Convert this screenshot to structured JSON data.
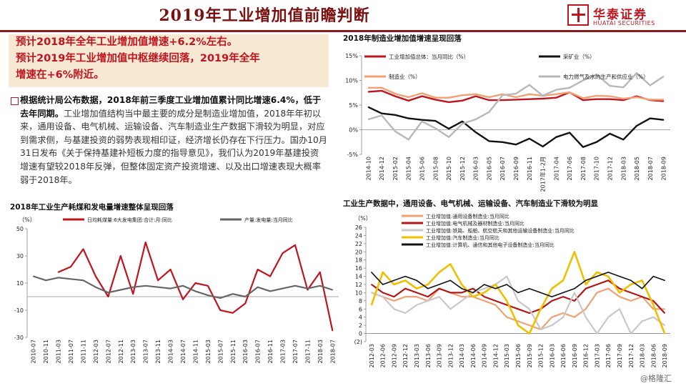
{
  "header": {
    "title": "2019年工业增加值前瞻判断",
    "logo_cn": "华泰证券",
    "logo_en": "HUATAI SECURITIES"
  },
  "summary": {
    "line1": "预计2018年全年工业增加值增速+6.2%左右。",
    "line2": "预计2019年工业增加值中枢继续回落，2019年全年",
    "line3": "增速在+6%附近。"
  },
  "body": {
    "bold": "根据统计局公布数据，2018年前三季度工业增加值累计同比增速6.4%，低于去年同期。",
    "rest": "工业增加值结构当中最主要的成分是制造业增加值，2018年年初以来，通用设备、电气机械、运输设备、汽车制造业生产数据下滑较为明显，对应到需求侧，与基建投资的弱势表现相印证，经济增长仍存在下行压力。国办10月31日发布《关于保持基建补短板力度的指导意见》，我们认为2019年基建投资增速有望较2018年反弹，但整体固定资产投资增速、以及出口增速表现大概率弱于2018年。"
  },
  "watermark": "@格隆汇",
  "colors": {
    "brand": "#8b1a1a",
    "accent": "#c0141e",
    "box": "#f6e8d3"
  },
  "chart_data": [
    {
      "id": "chart1",
      "type": "line",
      "title": "2018年制造业增加值增速呈现回落",
      "ylim": [
        -5,
        15
      ],
      "yticks": [
        "15%",
        "10%",
        "5%",
        "0%",
        "-5%"
      ],
      "ytick_values": [
        15,
        10,
        5,
        0,
        -5
      ],
      "x": [
        "2014-10",
        "2014-12",
        "2015-02",
        "2015-04",
        "2015-06",
        "2015-08",
        "2015-10",
        "2015-12",
        "2016-03",
        "2016-05",
        "2016-07",
        "2016-09",
        "2016-11",
        "2017年1-2月",
        "2017-04",
        "2017-06",
        "2017-08",
        "2017-10",
        "2017-12",
        "2018-03",
        "2018-05",
        "2018-07",
        "2018-09"
      ],
      "series": [
        {
          "name": "工业增加值总体：当月同比（%）",
          "color": "#c0141e",
          "width": 2.4,
          "values": [
            7.7,
            7.9,
            6.8,
            5.9,
            6.8,
            6.1,
            5.6,
            5.9,
            6.8,
            6.0,
            6.0,
            6.1,
            6.2,
            6.3,
            6.5,
            7.6,
            6.0,
            6.2,
            6.2,
            6.0,
            6.8,
            6.0,
            5.8
          ]
        },
        {
          "name": "采矿业（%）",
          "color": "#111111",
          "width": 2.4,
          "values": [
            4.6,
            3.3,
            3.0,
            2.3,
            2.0,
            1.8,
            0.2,
            1.7,
            -0.5,
            -2.3,
            -2.5,
            -3.0,
            -1.8,
            -3.4,
            -1.5,
            -0.6,
            -3.5,
            -2.5,
            -0.8,
            -2.0,
            0.8,
            2.3,
            2.0
          ]
        },
        {
          "name": "制造业（%）",
          "color": "#f2a073",
          "width": 2.4,
          "values": [
            8.5,
            8.5,
            7.3,
            6.6,
            7.4,
            6.5,
            6.5,
            7.0,
            7.2,
            6.6,
            7.2,
            6.6,
            7.2,
            6.9,
            7.2,
            7.6,
            6.4,
            6.9,
            6.8,
            6.3,
            6.6,
            6.1,
            6.1
          ]
        },
        {
          "name": "电力燃气及水的生产和供应业（%）",
          "color": "#b8b8b8",
          "width": 2.4,
          "values": [
            2.1,
            2.9,
            -0.3,
            -2.0,
            1.7,
            0.3,
            -1.5,
            1.2,
            2.1,
            3.6,
            7.0,
            7.3,
            9.1,
            6.9,
            8.1,
            8.5,
            10.0,
            11.2,
            8.9,
            8.6,
            11.5,
            9.0,
            10.8
          ]
        }
      ]
    },
    {
      "id": "chart2",
      "type": "line",
      "title": "2018年工业生产耗煤和发电量增速整体呈现回落",
      "ylabel": "（%）",
      "ylim": [
        -30,
        50
      ],
      "yticks": [
        "50",
        "30",
        "10",
        "-10",
        "-30"
      ],
      "ytick_values": [
        50,
        30,
        10,
        -10,
        -30
      ],
      "x": [
        "2010-07",
        "2010-11",
        "2011-03",
        "2011-07",
        "2011-11",
        "2012-03",
        "2012-07",
        "2012-11",
        "2013-03",
        "2013-07",
        "2013-11",
        "2014-03",
        "2014-07",
        "2014-11",
        "2015-03",
        "2015-07",
        "2015-11",
        "2016-03",
        "2016-07",
        "2016-11",
        "2017-03",
        "2017-07",
        "2017-11",
        "2018-03",
        "2018-07"
      ],
      "series": [
        {
          "name": "日均耗煤量:6大发电集团:合计:月:同比",
          "color": "#c0141e",
          "width": 2.2,
          "values": [
            null,
            null,
            18,
            22,
            35,
            15,
            0,
            30,
            2,
            40,
            12,
            20,
            -2,
            10,
            8,
            -10,
            -12,
            -5,
            20,
            15,
            32,
            38,
            5,
            18,
            -25
          ]
        },
        {
          "name": "产量:发电量:当月同比",
          "color": "#666666",
          "width": 2.2,
          "values": [
            15,
            12,
            14,
            13,
            12,
            7,
            3,
            5,
            7,
            8,
            7,
            6,
            8,
            4,
            1,
            -1,
            2,
            0,
            7,
            4,
            6,
            8,
            6,
            8,
            5
          ]
        }
      ]
    },
    {
      "id": "chart3",
      "type": "line",
      "title": "工业生产数据中，通用设备、电气机械、运输设备、汽车制造业下滑较为明显",
      "ylabel": "（%）",
      "ylim": [
        -2,
        26
      ],
      "yticks": [
        "26",
        "24",
        "22",
        "20",
        "18",
        "16",
        "14",
        "12",
        "10",
        "8",
        "6",
        "4",
        "2",
        "0",
        "(2)"
      ],
      "ytick_values": [
        26,
        24,
        22,
        20,
        18,
        16,
        14,
        12,
        10,
        8,
        6,
        4,
        2,
        0,
        -2
      ],
      "x": [
        "2012-03",
        "2012-06",
        "2012-09",
        "2012-12",
        "2013-03",
        "2013-06",
        "2013-09",
        "2013-12",
        "2014-03",
        "2014-06",
        "2014-09",
        "2014-12",
        "2015-03",
        "2015-06",
        "2015-09",
        "2015-12",
        "2016-03",
        "2016-06",
        "2016-09",
        "2016-12",
        "2017-03",
        "2017-06",
        "2017-09",
        "2017-12",
        "2018-03",
        "2018-06",
        "2018-09"
      ],
      "series": [
        {
          "name": "工业增加值:通用设备制造业:当月同比",
          "color": "#f2a073",
          "width": 2.2,
          "values": [
            10,
            9,
            8,
            9,
            9,
            8,
            11,
            10,
            9,
            9,
            8,
            7,
            4,
            3,
            2,
            1,
            4,
            5,
            4,
            6,
            10,
            11,
            9,
            8,
            9,
            6,
            6
          ]
        },
        {
          "name": "工业增加值:电气机械及器材制造业:当月同比",
          "color": "#b01818",
          "width": 2.2,
          "values": [
            12,
            10,
            9,
            11,
            10,
            9,
            11,
            10,
            10,
            11,
            9,
            8,
            7,
            6,
            5,
            6,
            8,
            9,
            8,
            11,
            12,
            13,
            11,
            10,
            9,
            8,
            5
          ]
        },
        {
          "name": "工业增加值:铁路、船舶、航空航天和其他运输设备制造业:当月同比",
          "color": "#c8c8c8",
          "width": 2.2,
          "values": [
            10,
            9,
            6,
            5,
            7,
            8,
            9,
            6,
            8,
            10,
            11,
            12,
            14,
            8,
            6,
            1,
            2,
            4,
            10,
            4,
            0,
            4,
            6,
            0,
            3,
            4,
            2
          ]
        },
        {
          "name": "工业增加值:汽车制造业:当月同比",
          "color": "#f0c000",
          "width": 2.6,
          "values": [
            7,
            15,
            12,
            13,
            11,
            12,
            15,
            17,
            12,
            9,
            10,
            12,
            8,
            2,
            0,
            6,
            11,
            13,
            20,
            12,
            15,
            14,
            10,
            12,
            13,
            7,
            0
          ]
        },
        {
          "name": "工业增加值:计算机、通信和其他电子设备制造业:当月同比",
          "color": "#111111",
          "width": 1.6,
          "values": [
            15,
            12,
            13,
            14,
            13,
            11,
            12,
            13,
            11,
            10,
            12,
            11,
            12,
            10,
            11,
            10,
            9,
            10,
            11,
            13,
            14,
            15,
            14,
            13,
            11,
            14,
            13
          ]
        }
      ]
    }
  ]
}
